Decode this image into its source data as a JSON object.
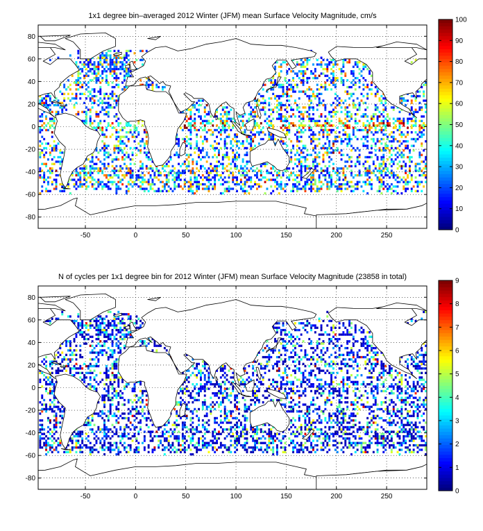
{
  "chart_data": [
    {
      "type": "heatmap",
      "title": "1x1 degree bin–averaged 2012 Winter (JFM) mean Surface Velocity Magnitude, cm/s",
      "x_ticks": [
        -50,
        0,
        50,
        100,
        150,
        200,
        250
      ],
      "y_ticks": [
        -80,
        -60,
        -40,
        -20,
        0,
        20,
        40,
        60,
        80
      ],
      "xlim": [
        -97,
        290
      ],
      "ylim": [
        -90,
        90
      ],
      "grid": true,
      "colorbar": {
        "range": [
          0,
          100
        ],
        "ticks": [
          0,
          10,
          20,
          30,
          40,
          50,
          60,
          70,
          80,
          90,
          100
        ],
        "colormap": "jet"
      },
      "overlay": "world coastlines"
    },
    {
      "type": "heatmap",
      "title": "N of cycles per 1x1 degree bin for 2012 Winter (JFM) mean Surface Velocity Magnitude (23858 in total)",
      "x_ticks": [
        -50,
        0,
        50,
        100,
        150,
        200,
        250
      ],
      "y_ticks": [
        -80,
        -60,
        -40,
        -20,
        0,
        20,
        40,
        60,
        80
      ],
      "xlim": [
        -97,
        290
      ],
      "ylim": [
        -90,
        90
      ],
      "grid": true,
      "colorbar": {
        "range": [
          0,
          9
        ],
        "ticks": [
          0,
          1,
          2,
          3,
          4,
          5,
          6,
          7,
          8,
          9
        ],
        "colormap": "jet"
      },
      "overlay": "world coastlines"
    }
  ],
  "colors": {
    "background": "#ffffff",
    "axis": "#000000",
    "grid": "#000000",
    "land": "#ffffff"
  }
}
